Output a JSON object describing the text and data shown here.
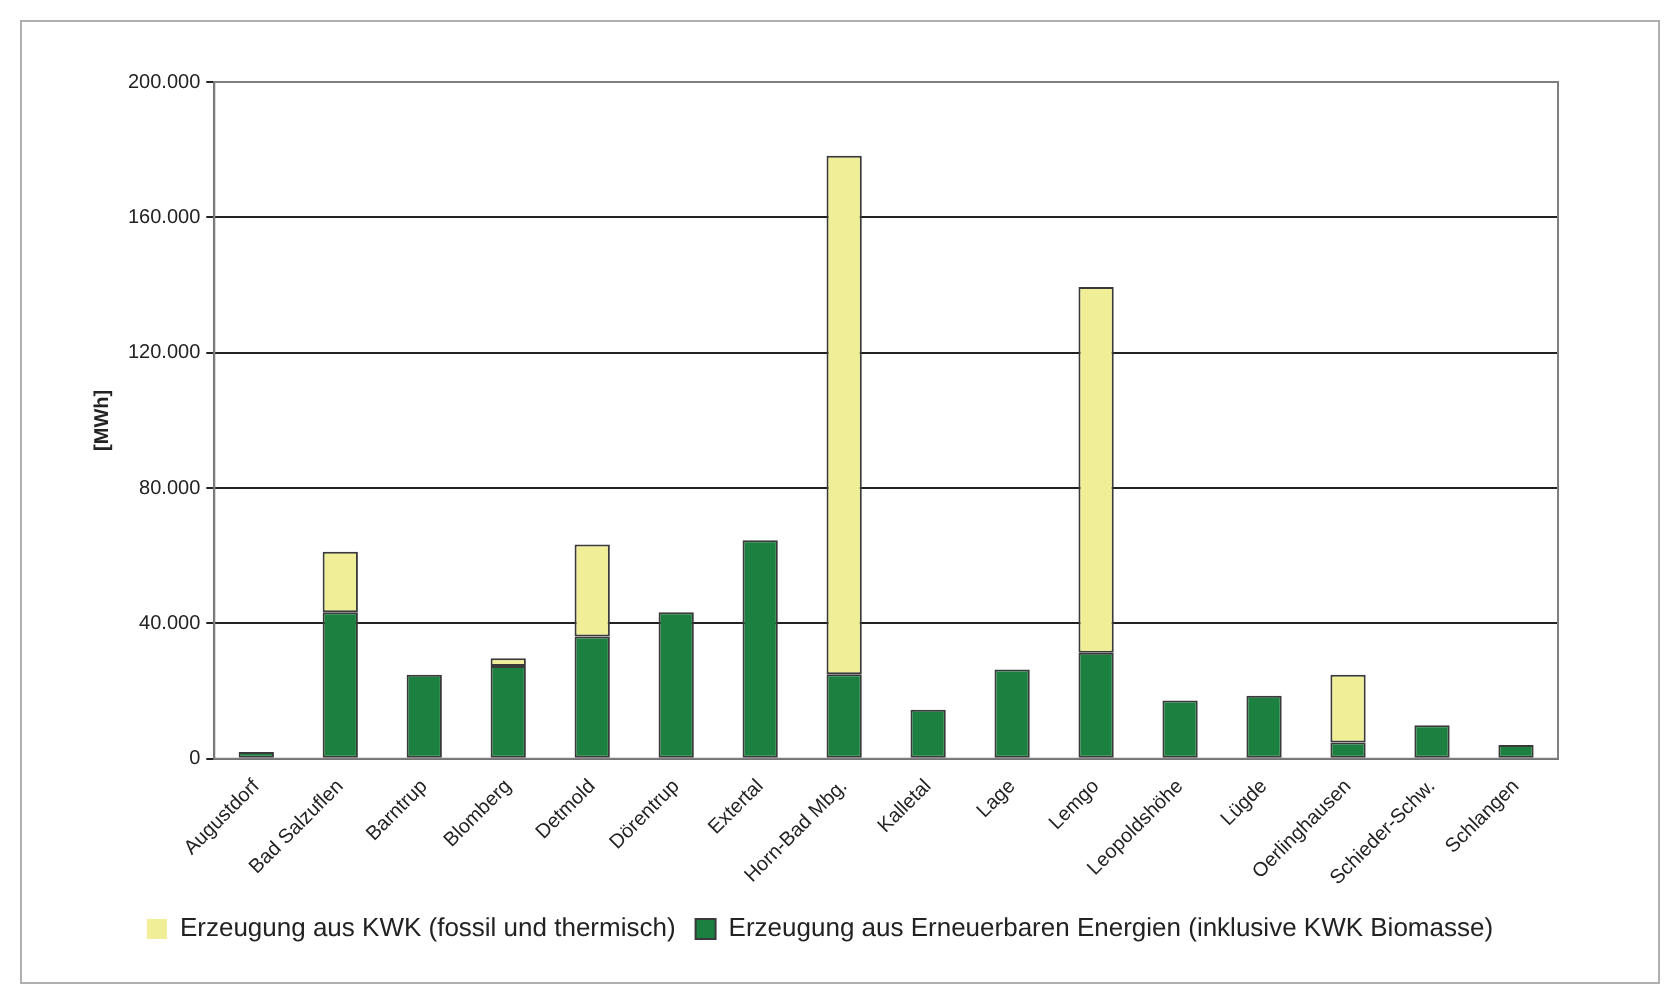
{
  "chart_data": {
    "type": "bar",
    "ylabel": "[MWh]",
    "stacked": true,
    "grid": "y",
    "legend": "bottom",
    "categories": [
      "Augustdorf",
      "Bad Salzuflen",
      "Barntrup",
      "Blomberg",
      "Detmold",
      "Dörentrup",
      "Extertal",
      "Horn-Bad Mbg.",
      "Kalletal",
      "Lage",
      "Lemgo",
      "Leopoldshöhe",
      "Lügde",
      "Oerlinghausen",
      "Schieder-Schw.",
      "Schlangen"
    ],
    "series": [
      {
        "name": "Erzeugung aus Erneuerbaren Energien (inklusive KWK Biomasse)",
        "color": "#1b8040",
        "values": [
          2000,
          43300,
          24800,
          27400,
          36100,
          43300,
          64600,
          25000,
          14500,
          26400,
          31300,
          17200,
          18600,
          4800,
          9900,
          4100
        ]
      },
      {
        "name": "Erzeugung aus KWK (fossil und thermisch)",
        "color": "#f0ee96",
        "values": [
          0,
          17900,
          0,
          2300,
          27200,
          0,
          0,
          153200,
          0,
          0,
          108100,
          0,
          0,
          20000,
          0,
          0
        ]
      }
    ],
    "ylim": [
      0,
      200000
    ],
    "yticks": [
      {
        "value": 0,
        "label": "0"
      },
      {
        "value": 40000,
        "label": "40.000"
      },
      {
        "value": 80000,
        "label": "80.000"
      },
      {
        "value": 120000,
        "label": "120.000"
      },
      {
        "value": 160000,
        "label": "160.000"
      },
      {
        "value": 200000,
        "label": "200.000"
      }
    ]
  }
}
